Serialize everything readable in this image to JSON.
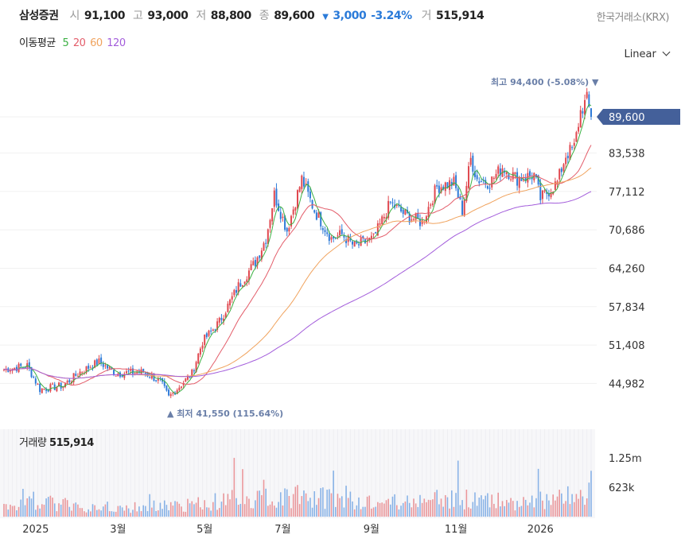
{
  "header": {
    "name": "삼성증권",
    "open_label": "시",
    "open": "91,100",
    "high_label": "고",
    "high": "93,000",
    "low_label": "저",
    "low": "88,800",
    "close_label": "종",
    "close": "89,600",
    "change_arrow": "▼",
    "change": "3,000",
    "change_pct": "-3.24%",
    "volume_label": "거",
    "volume": "515,914",
    "exchange": "한국거래소(KRX)"
  },
  "ma_legend": {
    "label": "이동평균",
    "items": [
      {
        "period": "5",
        "color": "#3cb043"
      },
      {
        "period": "20",
        "color": "#e35d6a"
      },
      {
        "period": "60",
        "color": "#f0a35e"
      },
      {
        "period": "120",
        "color": "#a35ddb"
      }
    ]
  },
  "scale_selector": {
    "value": "Linear"
  },
  "colors": {
    "up": "#e0484f",
    "down": "#2f7bd8",
    "current": "#44609a"
  },
  "chart_data": {
    "type": "candlestick",
    "y_ticks": [
      "89,600",
      "83,538",
      "77,112",
      "70,686",
      "64,260",
      "57,834",
      "51,408",
      "44,982"
    ],
    "y_tick_values": [
      89600,
      83538,
      77112,
      70686,
      64260,
      57834,
      51408,
      44982
    ],
    "current_price": "89,600",
    "high_annotation": "최고 94,400 (-5.08%) ▼",
    "low_annotation": "▲ 최저 41,550 (115.64%)",
    "x_labels": [
      {
        "label": "2025",
        "idx": 15
      },
      {
        "label": "3월",
        "idx": 54
      },
      {
        "label": "5월",
        "idx": 95
      },
      {
        "label": "7월",
        "idx": 132
      },
      {
        "label": "9월",
        "idx": 174
      },
      {
        "label": "11월",
        "idx": 214
      },
      {
        "label": "2026",
        "idx": 254
      }
    ],
    "candle_count": 279,
    "close_waypoints": [
      [
        0,
        47300
      ],
      [
        11,
        47950
      ],
      [
        17,
        44000
      ],
      [
        28,
        44600
      ],
      [
        36,
        46900
      ],
      [
        45,
        48600
      ],
      [
        53,
        46650
      ],
      [
        66,
        46900
      ],
      [
        74,
        45300
      ],
      [
        78,
        42650
      ],
      [
        89,
        46650
      ],
      [
        94,
        51960
      ],
      [
        102,
        55300
      ],
      [
        111,
        61300
      ],
      [
        119,
        65300
      ],
      [
        124,
        69250
      ],
      [
        128,
        76600
      ],
      [
        134,
        70600
      ],
      [
        141,
        79200
      ],
      [
        147,
        73900
      ],
      [
        155,
        69250
      ],
      [
        160,
        69900
      ],
      [
        166,
        67900
      ],
      [
        175,
        69250
      ],
      [
        183,
        75200
      ],
      [
        190,
        73200
      ],
      [
        198,
        71900
      ],
      [
        205,
        77900
      ],
      [
        213,
        78600
      ],
      [
        217,
        73900
      ],
      [
        221,
        82550
      ],
      [
        224,
        79200
      ],
      [
        230,
        78600
      ],
      [
        236,
        81200
      ],
      [
        243,
        79200
      ],
      [
        251,
        79900
      ],
      [
        254,
        75900
      ],
      [
        262,
        78600
      ],
      [
        266,
        83200
      ],
      [
        270,
        84500
      ],
      [
        273,
        90500
      ],
      [
        276,
        92500
      ],
      [
        278,
        89600
      ]
    ],
    "volume_label": "거래량",
    "volume_value": "515,914",
    "volume_ticks": [
      "1.25m",
      "623k"
    ],
    "volume_tick_values": [
      1250000,
      623000
    ],
    "volume_waypoints": [
      [
        0,
        250000
      ],
      [
        15,
        350000
      ],
      [
        40,
        200000
      ],
      [
        60,
        200000
      ],
      [
        90,
        250000
      ],
      [
        110,
        400000
      ],
      [
        130,
        450000
      ],
      [
        150,
        400000
      ],
      [
        180,
        300000
      ],
      [
        200,
        350000
      ],
      [
        220,
        380000
      ],
      [
        240,
        300000
      ],
      [
        260,
        350000
      ],
      [
        278,
        515914
      ]
    ]
  }
}
